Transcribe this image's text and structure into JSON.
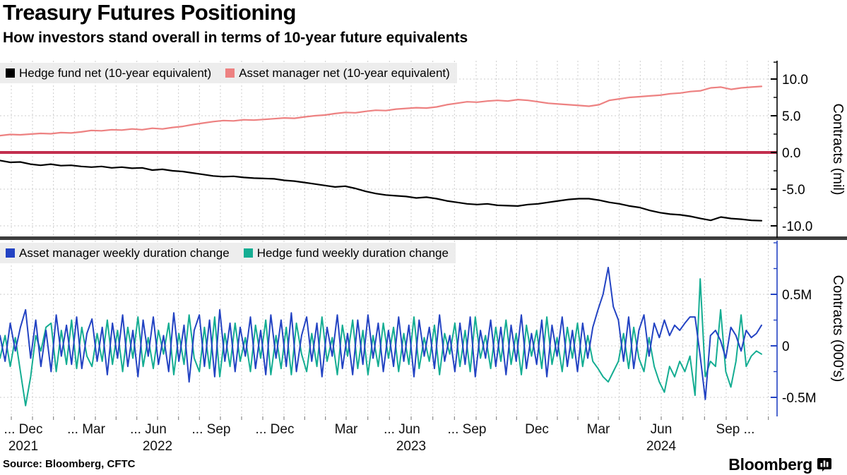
{
  "header": {
    "title": "Treasury Futures Positioning",
    "subtitle": "How investors stand overall in terms of 10-year future equivalents"
  },
  "footer": {
    "source": "Source: Bloomberg, CFTC",
    "brand": "Bloomberg",
    "brand_icon": "bloomberg-terminal-icon"
  },
  "colors": {
    "hedge_fund_net": "#000000",
    "asset_manager_net": "#ed8181",
    "zero_line": "#c22e4e",
    "asset_manager_change": "#2343c3",
    "hedge_fund_change": "#14ad92",
    "grid": "#cccccc",
    "divider": "#3d3d3d",
    "legend_bg": "#ebebeb",
    "x_tick": "#8a8a8a"
  },
  "x_axis": {
    "tick_labels": [
      "... Dec",
      "... Mar",
      "... Jun",
      "... Sep",
      "... Dec",
      "Mar",
      "... Jun",
      "... Sep",
      "Dec",
      "Mar",
      "Jun",
      "Sep ..."
    ],
    "years": [
      {
        "label": "2021",
        "tick": 0
      },
      {
        "label": "2022",
        "tick": 2
      },
      {
        "label": "2023",
        "tick": 6
      },
      {
        "label": "2024",
        "tick": 10
      }
    ]
  },
  "chart_data": [
    {
      "type": "line",
      "panel": "top",
      "ylabel": "Contracts (mil)",
      "ylim": [
        -11.6,
        12.3
      ],
      "grid": true,
      "legend_position": "top-left",
      "yticks": [
        {
          "v": 10,
          "label": "10.0"
        },
        {
          "v": 5,
          "label": "5.0"
        },
        {
          "v": 0,
          "label": "0.0"
        },
        {
          "v": -5,
          "label": "-5.0"
        },
        {
          "v": -10,
          "label": "-10.0"
        }
      ],
      "minor_yticks": [
        12.3,
        7.5,
        2.5,
        -2.5,
        -7.5
      ],
      "zero_line": {
        "value": 0,
        "color": "#c22e4e"
      },
      "series": [
        {
          "name": "Hedge fund net (10-year equivalent)",
          "color": "#000000",
          "values": [
            -1.1,
            -1.35,
            -1.3,
            -1.6,
            -1.75,
            -1.6,
            -1.8,
            -1.75,
            -1.9,
            -2.0,
            -1.9,
            -2.1,
            -2.0,
            -2.15,
            -2.1,
            -2.4,
            -2.3,
            -2.5,
            -2.6,
            -2.8,
            -3.0,
            -3.2,
            -3.3,
            -3.25,
            -3.4,
            -3.5,
            -3.55,
            -3.6,
            -3.8,
            -3.9,
            -4.1,
            -4.3,
            -4.5,
            -4.7,
            -4.6,
            -4.9,
            -5.3,
            -5.6,
            -5.8,
            -5.9,
            -6.0,
            -6.2,
            -6.1,
            -6.3,
            -6.6,
            -6.8,
            -7.0,
            -7.1,
            -7.0,
            -7.2,
            -7.25,
            -7.3,
            -7.1,
            -7.0,
            -6.8,
            -6.6,
            -6.4,
            -6.3,
            -6.3,
            -6.5,
            -6.8,
            -7.0,
            -7.3,
            -7.5,
            -7.9,
            -8.2,
            -8.4,
            -8.5,
            -8.7,
            -9.0,
            -9.25,
            -8.8,
            -9.0,
            -9.1,
            -9.25,
            -9.3
          ]
        },
        {
          "name": "Asset manager net (10-year equivalent)",
          "color": "#ed8181",
          "values": [
            2.3,
            2.45,
            2.4,
            2.5,
            2.6,
            2.55,
            2.7,
            2.65,
            2.8,
            3.0,
            2.95,
            3.1,
            3.05,
            3.2,
            3.1,
            3.3,
            3.2,
            3.4,
            3.55,
            3.8,
            4.0,
            4.2,
            4.35,
            4.3,
            4.45,
            4.4,
            4.5,
            4.6,
            4.7,
            4.65,
            4.85,
            5.0,
            5.1,
            5.3,
            5.45,
            5.4,
            5.6,
            5.75,
            5.7,
            5.9,
            6.0,
            6.1,
            6.05,
            6.2,
            6.5,
            6.7,
            6.9,
            6.85,
            7.0,
            7.1,
            7.0,
            7.2,
            7.1,
            6.9,
            6.7,
            6.6,
            6.5,
            6.4,
            6.3,
            6.5,
            7.1,
            7.3,
            7.5,
            7.6,
            7.7,
            7.8,
            8.0,
            8.1,
            8.3,
            8.4,
            8.8,
            8.9,
            8.6,
            8.8,
            8.9,
            9.0
          ]
        }
      ]
    },
    {
      "type": "line",
      "panel": "bottom",
      "ylabel": "Contracts (000's)",
      "ylim": [
        -0.68,
        1.03
      ],
      "grid": true,
      "legend_position": "top-left",
      "yticks": [
        {
          "v": 0.5,
          "label": "0.5M"
        },
        {
          "v": 0,
          "label": "0"
        },
        {
          "v": -0.5,
          "label": "-0.5M"
        }
      ],
      "minor_yticks": [
        1.0,
        0.75,
        0.25,
        -0.25
      ],
      "series": [
        {
          "name": "Asset manager weekly duration change",
          "color": "#2343c3",
          "values": [
            0.1,
            -0.15,
            0.22,
            -0.05,
            0.18,
            0.35,
            -0.12,
            0.25,
            -0.2,
            0.15,
            -0.25,
            0.3,
            -0.1,
            0.2,
            -0.18,
            0.28,
            -0.22,
            0.12,
            0.26,
            -0.15,
            0.18,
            -0.28,
            0.22,
            -0.12,
            0.3,
            -0.2,
            0.15,
            -0.3,
            0.25,
            -0.1,
            0.28,
            -0.18,
            0.1,
            -0.25,
            0.32,
            -0.15,
            0.2,
            -0.35,
            0.15,
            0.3,
            -0.2,
            0.25,
            -0.3,
            0.35,
            -0.15,
            0.22,
            -0.25,
            0.18,
            -0.1,
            0.28,
            -0.22,
            0.15,
            -0.28,
            0.3,
            -0.12,
            0.25,
            -0.2,
            0.32,
            -0.25,
            0.1,
            0.28,
            -0.15,
            0.22,
            -0.3,
            0.18,
            -0.1,
            0.3,
            -0.22,
            0.12,
            -0.28,
            0.25,
            -0.18,
            0.3,
            -0.12,
            0.22,
            -0.25,
            0.15,
            -0.2,
            0.28,
            -0.15,
            0.2,
            -0.3,
            0.25,
            -0.1,
            0.18,
            -0.22,
            0.3,
            -0.15,
            0.1,
            -0.25,
            0.22,
            -0.18,
            0.28,
            -0.3,
            0.15,
            -0.12,
            0.25,
            -0.2,
            0.18,
            -0.28,
            0.2,
            -0.15,
            0.3,
            -0.22,
            0.12,
            -0.18,
            0.25,
            -0.3,
            0.2,
            -0.1,
            0.28,
            -0.2,
            0.15,
            -0.25,
            0.22,
            -0.12,
            0.18,
            0.35,
            0.5,
            0.76,
            0.38,
            0.25,
            -0.15,
            0.28,
            -0.22,
            0.15,
            0.3,
            -0.1,
            0.22,
            0.08,
            0.25,
            0.1,
            0.2,
            0.15,
            0.22,
            0.28,
            0.28,
            -0.1,
            -0.52,
            0.1,
            0.15,
            0.05,
            -0.12,
            0.18,
            0.1,
            -0.05,
            0.15,
            0.08,
            0.12,
            0.2
          ]
        },
        {
          "name": "Hedge fund weekly duration change",
          "color": "#14ad92",
          "values": [
            -0.12,
            0.1,
            -0.2,
            0.08,
            -0.25,
            -0.58,
            -0.3,
            0.1,
            -0.05,
            0.18,
            0.22,
            -0.25,
            0.15,
            -0.18,
            0.25,
            -0.22,
            0.18,
            -0.1,
            -0.2,
            0.12,
            -0.15,
            0.25,
            -0.18,
            0.15,
            -0.25,
            0.18,
            -0.12,
            0.28,
            -0.2,
            0.08,
            -0.22,
            0.15,
            -0.08,
            0.22,
            -0.28,
            0.12,
            -0.18,
            0.3,
            -0.12,
            -0.25,
            0.18,
            -0.22,
            0.28,
            -0.3,
            0.12,
            -0.2,
            0.22,
            -0.15,
            0.08,
            -0.25,
            0.2,
            -0.12,
            0.25,
            -0.28,
            0.1,
            -0.22,
            0.18,
            -0.28,
            0.22,
            -0.08,
            -0.25,
            0.12,
            -0.2,
            0.28,
            -0.15,
            0.08,
            -0.28,
            0.2,
            -0.1,
            0.25,
            -0.22,
            0.15,
            -0.28,
            0.1,
            -0.2,
            0.22,
            -0.12,
            0.18,
            -0.25,
            0.12,
            -0.18,
            0.28,
            -0.22,
            0.08,
            -0.15,
            0.2,
            -0.28,
            0.12,
            -0.08,
            0.22,
            -0.2,
            0.15,
            -0.25,
            0.28,
            -0.12,
            0.1,
            -0.22,
            0.18,
            -0.15,
            0.25,
            -0.18,
            0.12,
            -0.28,
            0.2,
            -0.1,
            0.15,
            -0.22,
            0.28,
            -0.18,
            0.08,
            -0.25,
            0.18,
            -0.12,
            0.22,
            -0.2,
            0.1,
            -0.15,
            -0.22,
            -0.3,
            -0.35,
            -0.25,
            -0.15,
            0.12,
            -0.22,
            0.18,
            -0.12,
            -0.25,
            0.08,
            -0.2,
            -0.35,
            -0.45,
            -0.2,
            -0.3,
            -0.15,
            -0.25,
            -0.1,
            -0.48,
            0.65,
            -0.3,
            -0.15,
            -0.2,
            0.35,
            -0.25,
            -0.4,
            -0.15,
            0.3,
            -0.2,
            -0.1,
            -0.05,
            -0.08
          ]
        }
      ]
    }
  ]
}
